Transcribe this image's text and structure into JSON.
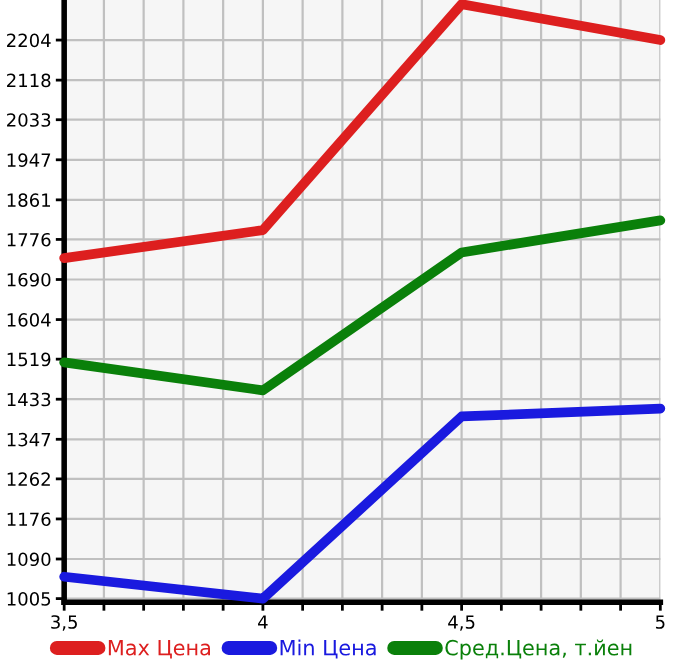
{
  "chart_data": {
    "type": "line",
    "x": [
      3.5,
      4,
      4.5,
      5
    ],
    "series": [
      {
        "name": "Max Цена",
        "color": "#dd1f1f",
        "values": [
          1736,
          1796,
          2281,
          2204
        ]
      },
      {
        "name": "Min Цена",
        "color": "#1a1adf",
        "values": [
          1052,
          1005,
          1396,
          1413
        ]
      },
      {
        "name": "Сред.Цена, т.йен",
        "color": "#0a800a",
        "values": [
          1512,
          1452,
          1748,
          1817
        ]
      }
    ],
    "xlim": [
      3.5,
      5
    ],
    "xticks": [
      {
        "value": 3.5,
        "label": "3,5"
      },
      {
        "value": 3.6,
        "label": null
      },
      {
        "value": 3.7,
        "label": null
      },
      {
        "value": 3.8,
        "label": null
      },
      {
        "value": 3.9,
        "label": null
      },
      {
        "value": 4,
        "label": "4"
      },
      {
        "value": 4.1,
        "label": null
      },
      {
        "value": 4.2,
        "label": null
      },
      {
        "value": 4.3,
        "label": null
      },
      {
        "value": 4.4,
        "label": null
      },
      {
        "value": 4.5,
        "label": "4,5"
      },
      {
        "value": 4.6,
        "label": null
      },
      {
        "value": 4.7,
        "label": null
      },
      {
        "value": 4.8,
        "label": null
      },
      {
        "value": 4.9,
        "label": null
      },
      {
        "value": 5,
        "label": "5"
      }
    ],
    "ylim": [
      997,
      2290
    ],
    "yticks": [
      1005,
      1090,
      1176,
      1262,
      1347,
      1433,
      1519,
      1604,
      1690,
      1776,
      1861,
      1947,
      2033,
      2118,
      2204
    ],
    "grid": true,
    "legend": "bottom",
    "marker": "none",
    "line_style": "solid"
  }
}
